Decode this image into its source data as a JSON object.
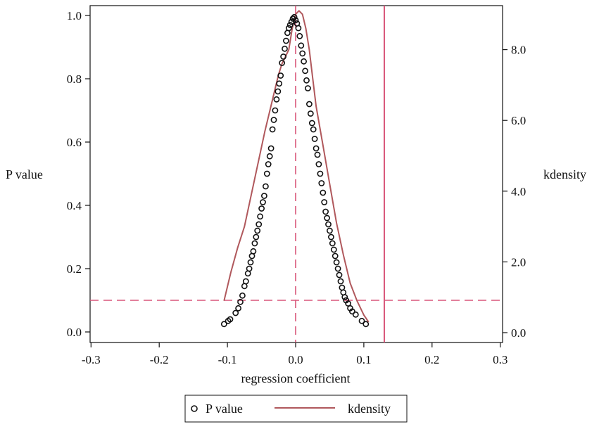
{
  "chart_data": {
    "type": "scatter",
    "title": "",
    "xlabel": "regression coefficient",
    "ylabel_left": "P value",
    "ylabel_right": "kdensity",
    "xlim": [
      -0.3,
      0.3
    ],
    "ylim_left": [
      0.0,
      1.0
    ],
    "ylim_right": [
      0.0,
      9.2
    ],
    "x_ticks": [
      -0.3,
      -0.2,
      -0.1,
      0.0,
      0.1,
      0.2,
      0.3
    ],
    "x_tick_labels": [
      "-0.3",
      "-0.2",
      "-0.1",
      "0.0",
      "0.1",
      "0.2",
      "0.3"
    ],
    "y_left_ticks": [
      0.0,
      0.2,
      0.4,
      0.6,
      0.8,
      1.0
    ],
    "y_left_tick_labels": [
      "0.0",
      "0.2",
      "0.4",
      "0.6",
      "0.8",
      "1.0"
    ],
    "y_right_ticks": [
      0.0,
      2.0,
      4.0,
      6.0,
      8.0
    ],
    "y_right_tick_labels": [
      "0.0",
      "2.0",
      "4.0",
      "6.0",
      "8.0"
    ],
    "grid": false,
    "legend_position": "bottom",
    "legend": [
      "P value",
      "kdensity"
    ],
    "colors": {
      "scatter": "#111111",
      "density": "#b0585c",
      "reference": "#d9567a"
    },
    "reference_lines": {
      "vertical_solid_x": 0.13,
      "vertical_dashed_x": 0.0,
      "horizontal_dashed_y": 0.1
    },
    "series": [
      {
        "name": "P value",
        "kind": "scatter",
        "axis": "left",
        "x": [
          -0.105,
          -0.099,
          -0.096,
          -0.088,
          -0.084,
          -0.081,
          -0.078,
          -0.075,
          -0.073,
          -0.07,
          -0.068,
          -0.066,
          -0.064,
          -0.062,
          -0.06,
          -0.058,
          -0.056,
          -0.054,
          -0.052,
          -0.05,
          -0.048,
          -0.046,
          -0.044,
          -0.042,
          -0.04,
          -0.038,
          -0.036,
          -0.034,
          -0.032,
          -0.03,
          -0.028,
          -0.026,
          -0.024,
          -0.022,
          -0.02,
          -0.018,
          -0.016,
          -0.014,
          -0.012,
          -0.01,
          -0.008,
          -0.006,
          -0.004,
          -0.002,
          0.0,
          0.002,
          0.004,
          0.006,
          0.008,
          0.01,
          0.012,
          0.014,
          0.016,
          0.018,
          0.02,
          0.022,
          0.024,
          0.026,
          0.028,
          0.03,
          0.032,
          0.034,
          0.036,
          0.038,
          0.04,
          0.042,
          0.044,
          0.046,
          0.048,
          0.05,
          0.052,
          0.054,
          0.056,
          0.058,
          0.06,
          0.062,
          0.064,
          0.066,
          0.068,
          0.07,
          0.072,
          0.074,
          0.077,
          0.08,
          0.083,
          0.088,
          0.097,
          0.103
        ],
        "y": [
          0.025,
          0.035,
          0.04,
          0.06,
          0.075,
          0.095,
          0.115,
          0.145,
          0.16,
          0.185,
          0.2,
          0.22,
          0.24,
          0.255,
          0.28,
          0.3,
          0.32,
          0.34,
          0.365,
          0.39,
          0.41,
          0.43,
          0.46,
          0.5,
          0.53,
          0.555,
          0.58,
          0.64,
          0.67,
          0.7,
          0.735,
          0.76,
          0.785,
          0.81,
          0.85,
          0.87,
          0.895,
          0.92,
          0.945,
          0.96,
          0.97,
          0.98,
          0.99,
          0.995,
          0.985,
          0.975,
          0.96,
          0.935,
          0.905,
          0.88,
          0.855,
          0.825,
          0.795,
          0.77,
          0.72,
          0.69,
          0.66,
          0.64,
          0.61,
          0.58,
          0.56,
          0.53,
          0.5,
          0.47,
          0.44,
          0.41,
          0.38,
          0.36,
          0.34,
          0.32,
          0.3,
          0.28,
          0.26,
          0.24,
          0.22,
          0.2,
          0.18,
          0.16,
          0.14,
          0.125,
          0.11,
          0.1,
          0.09,
          0.075,
          0.065,
          0.055,
          0.035,
          0.025
        ]
      },
      {
        "name": "kdensity",
        "kind": "line",
        "axis": "right",
        "x": [
          -0.105,
          -0.095,
          -0.085,
          -0.075,
          -0.065,
          -0.055,
          -0.045,
          -0.035,
          -0.03,
          -0.025,
          -0.02,
          -0.015,
          -0.01,
          -0.005,
          0.0,
          0.005,
          0.01,
          0.015,
          0.02,
          0.025,
          0.03,
          0.04,
          0.05,
          0.06,
          0.07,
          0.08,
          0.09,
          0.1,
          0.107
        ],
        "y": [
          0.9,
          1.7,
          2.4,
          3.0,
          3.9,
          4.8,
          5.7,
          6.5,
          6.9,
          7.3,
          7.6,
          7.8,
          8.0,
          8.6,
          9.0,
          9.1,
          9.0,
          8.6,
          8.0,
          7.2,
          6.4,
          5.3,
          4.2,
          3.1,
          2.2,
          1.4,
          0.9,
          0.5,
          0.3
        ]
      }
    ]
  }
}
